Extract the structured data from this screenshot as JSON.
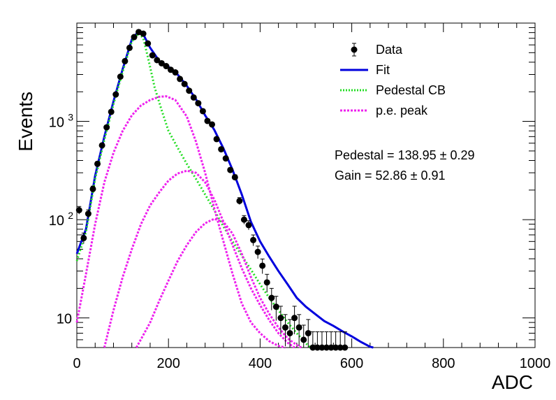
{
  "chart_data": {
    "type": "scatter",
    "xlabel": "ADC",
    "ylabel": "Events",
    "xlim": [
      0,
      1000
    ],
    "ylim": [
      5,
      10000
    ],
    "y_scale": "log",
    "x_ticks": [
      {
        "value": 0,
        "label": "0"
      },
      {
        "value": 200,
        "label": "200"
      },
      {
        "value": 400,
        "label": "400"
      },
      {
        "value": 600,
        "label": "600"
      },
      {
        "value": 800,
        "label": "800"
      },
      {
        "value": 1000,
        "label": "1000"
      }
    ],
    "y_ticks": [
      {
        "value": 10,
        "label": "10"
      },
      {
        "value": 100,
        "label": "10",
        "exponent": "2"
      },
      {
        "value": 1000,
        "label": "10",
        "exponent": "3"
      }
    ],
    "legend_position": "top-right",
    "legend": [
      {
        "label": "Data",
        "style": "marker",
        "color": "#000000"
      },
      {
        "label": "Fit",
        "style": "solid",
        "color": "#0000dd"
      },
      {
        "label": "Pedestal CB",
        "style": "dotted",
        "color": "#22dd22"
      },
      {
        "label": "p.e. peak",
        "style": "dashed",
        "color": "#ee22ee"
      }
    ],
    "annotations": [
      "Pedestal = 138.95 ± 0.29",
      "Gain = 52.86 ± 0.91"
    ],
    "series": [
      {
        "name": "Data",
        "kind": "points",
        "color": "#000000",
        "points": [
          [
            5,
            125
          ],
          [
            15,
            65
          ],
          [
            25,
            115
          ],
          [
            35,
            205
          ],
          [
            45,
            370
          ],
          [
            55,
            570
          ],
          [
            65,
            870
          ],
          [
            75,
            1250
          ],
          [
            85,
            1880
          ],
          [
            95,
            2850
          ],
          [
            105,
            4100
          ],
          [
            115,
            5600
          ],
          [
            125,
            7200
          ],
          [
            135,
            8100
          ],
          [
            145,
            7800
          ],
          [
            155,
            6200
          ],
          [
            165,
            4700
          ],
          [
            175,
            4200
          ],
          [
            185,
            3900
          ],
          [
            195,
            3650
          ],
          [
            205,
            3350
          ],
          [
            215,
            3150
          ],
          [
            225,
            2700
          ],
          [
            235,
            2400
          ],
          [
            245,
            2050
          ],
          [
            255,
            1750
          ],
          [
            265,
            1530
          ],
          [
            275,
            1270
          ],
          [
            285,
            1010
          ],
          [
            295,
            930
          ],
          [
            305,
            660
          ],
          [
            315,
            520
          ],
          [
            325,
            420
          ],
          [
            335,
            320
          ],
          [
            345,
            270
          ],
          [
            355,
            155
          ],
          [
            365,
            100
          ],
          [
            375,
            88
          ],
          [
            385,
            62
          ],
          [
            395,
            47
          ],
          [
            405,
            34
          ],
          [
            415,
            23
          ],
          [
            425,
            16
          ],
          [
            435,
            13
          ],
          [
            445,
            10
          ],
          [
            455,
            8
          ],
          [
            465,
            7
          ],
          [
            475,
            10
          ],
          [
            485,
            8
          ],
          [
            495,
            6
          ],
          [
            505,
            7
          ],
          [
            515,
            5
          ],
          [
            525,
            5
          ],
          [
            535,
            5
          ],
          [
            545,
            5
          ],
          [
            555,
            5
          ],
          [
            565,
            5
          ],
          [
            575,
            5
          ],
          [
            585,
            5
          ]
        ]
      },
      {
        "name": "Fit",
        "kind": "line",
        "color": "#0000dd",
        "points": [
          [
            0,
            45
          ],
          [
            20,
            80
          ],
          [
            40,
            280
          ],
          [
            60,
            700
          ],
          [
            80,
            1600
          ],
          [
            100,
            3400
          ],
          [
            120,
            6800
          ],
          [
            135,
            8300
          ],
          [
            145,
            7700
          ],
          [
            160,
            5600
          ],
          [
            180,
            4100
          ],
          [
            200,
            3600
          ],
          [
            220,
            3000
          ],
          [
            240,
            2300
          ],
          [
            260,
            1680
          ],
          [
            280,
            1150
          ],
          [
            300,
            820
          ],
          [
            320,
            530
          ],
          [
            340,
            320
          ],
          [
            360,
            180
          ],
          [
            380,
            95
          ],
          [
            400,
            60
          ],
          [
            420,
            42
          ],
          [
            440,
            30
          ],
          [
            460,
            22
          ],
          [
            480,
            16
          ],
          [
            500,
            13
          ],
          [
            520,
            11
          ],
          [
            540,
            9.3
          ],
          [
            560,
            8.3
          ],
          [
            580,
            7.3
          ],
          [
            600,
            6.5
          ],
          [
            620,
            5.7
          ],
          [
            640,
            5.1
          ],
          [
            647,
            5
          ]
        ]
      },
      {
        "name": "Pedestal CB",
        "kind": "line",
        "color": "#22dd22",
        "points": [
          [
            0,
            38
          ],
          [
            20,
            75
          ],
          [
            40,
            260
          ],
          [
            60,
            650
          ],
          [
            80,
            1500
          ],
          [
            100,
            3200
          ],
          [
            120,
            6500
          ],
          [
            135,
            7900
          ],
          [
            145,
            7000
          ],
          [
            155,
            4500
          ],
          [
            170,
            2200
          ],
          [
            185,
            1300
          ],
          [
            200,
            800
          ],
          [
            220,
            540
          ],
          [
            240,
            370
          ],
          [
            260,
            260
          ],
          [
            280,
            180
          ],
          [
            300,
            125
          ],
          [
            320,
            85
          ],
          [
            340,
            60
          ],
          [
            360,
            43
          ],
          [
            380,
            31
          ],
          [
            400,
            22
          ],
          [
            420,
            16
          ],
          [
            440,
            12
          ],
          [
            460,
            9
          ],
          [
            480,
            7
          ],
          [
            500,
            5.5
          ],
          [
            510,
            5
          ]
        ]
      },
      {
        "name": "p.e. peak 1",
        "kind": "line",
        "color": "#ee22ee",
        "points": [
          [
            0,
            9
          ],
          [
            20,
            28
          ],
          [
            40,
            90
          ],
          [
            60,
            240
          ],
          [
            80,
            480
          ],
          [
            100,
            800
          ],
          [
            120,
            1150
          ],
          [
            140,
            1450
          ],
          [
            160,
            1650
          ],
          [
            180,
            1780
          ],
          [
            195,
            1800
          ],
          [
            215,
            1650
          ],
          [
            240,
            1120
          ],
          [
            260,
            620
          ],
          [
            280,
            300
          ],
          [
            300,
            130
          ],
          [
            320,
            60
          ],
          [
            340,
            28
          ],
          [
            360,
            14
          ],
          [
            380,
            9
          ],
          [
            400,
            7
          ],
          [
            420,
            5.8
          ],
          [
            440,
            5.2
          ],
          [
            455,
            5
          ]
        ]
      },
      {
        "name": "p.e. peak 2",
        "kind": "line",
        "color": "#ee22ee",
        "points": [
          [
            60,
            5
          ],
          [
            80,
            12
          ],
          [
            100,
            26
          ],
          [
            120,
            50
          ],
          [
            140,
            90
          ],
          [
            160,
            140
          ],
          [
            180,
            190
          ],
          [
            200,
            250
          ],
          [
            220,
            295
          ],
          [
            240,
            315
          ],
          [
            260,
            300
          ],
          [
            280,
            240
          ],
          [
            300,
            160
          ],
          [
            320,
            95
          ],
          [
            340,
            55
          ],
          [
            360,
            32
          ],
          [
            380,
            20
          ],
          [
            400,
            13.5
          ],
          [
            420,
            9.5
          ],
          [
            440,
            7
          ],
          [
            460,
            5.6
          ],
          [
            475,
            5
          ]
        ]
      },
      {
        "name": "p.e. peak 3",
        "kind": "line",
        "color": "#ee22ee",
        "points": [
          [
            130,
            5
          ],
          [
            160,
            9
          ],
          [
            180,
            15
          ],
          [
            200,
            24
          ],
          [
            220,
            38
          ],
          [
            240,
            55
          ],
          [
            260,
            75
          ],
          [
            280,
            92
          ],
          [
            300,
            102
          ],
          [
            320,
            95
          ],
          [
            340,
            72
          ],
          [
            360,
            45
          ],
          [
            380,
            26
          ],
          [
            400,
            16
          ],
          [
            420,
            11
          ],
          [
            440,
            8
          ],
          [
            460,
            6.2
          ],
          [
            480,
            5.3
          ],
          [
            490,
            5
          ]
        ]
      }
    ]
  }
}
